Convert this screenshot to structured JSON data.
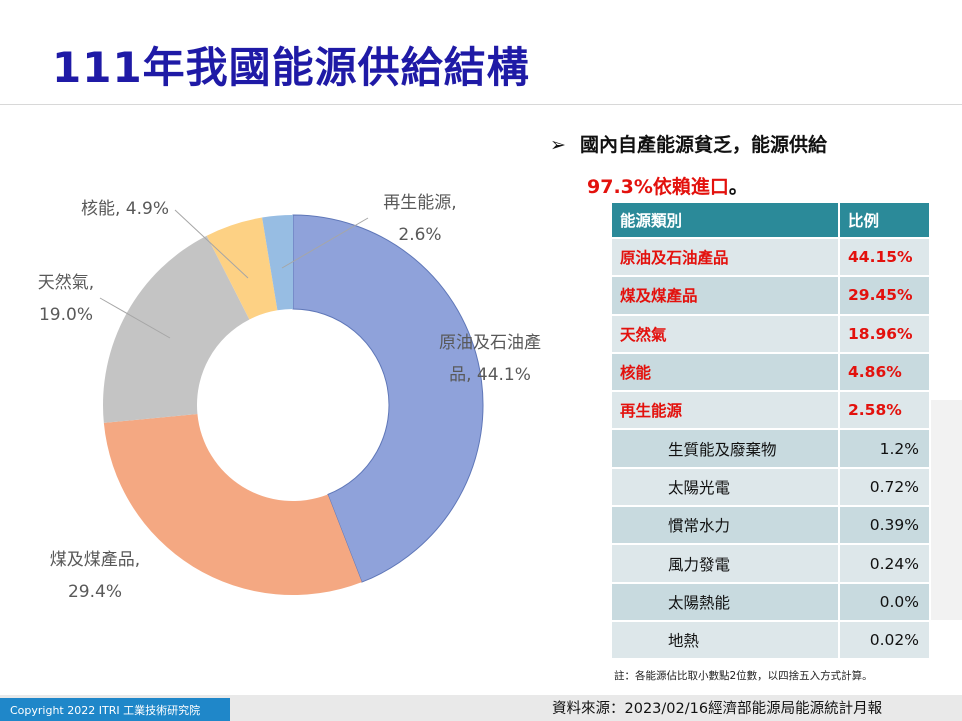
{
  "slide": {
    "title": "111年我國能源供給結構",
    "bullet_line1": "國內自產能源貧乏，能源供給",
    "bullet_line2_red": "97.3%依賴進口",
    "bullet_line2_end": "。",
    "arrow_glyph": "➢",
    "note": "註：各能源佔比取小數點2位數，以四捨五入方式計算。",
    "copyright": "Copyright 2022  ITRI  工業技術研究院",
    "source": "資料來源：2023/02/16經濟部能源局能源統計月報"
  },
  "table": {
    "headers": [
      "能源類別",
      "比例"
    ],
    "main_rows": [
      {
        "name": "原油及石油產品",
        "value": "44.15%"
      },
      {
        "name": "煤及煤產品",
        "value": "29.45%"
      },
      {
        "name": "天然氣",
        "value": "18.96%"
      },
      {
        "name": "核能",
        "value": "4.86%"
      },
      {
        "name": "再生能源",
        "value": "2.58%"
      }
    ],
    "sub_rows": [
      {
        "name": "生質能及廢棄物",
        "value": "1.2%"
      },
      {
        "name": "太陽光電",
        "value": "0.72%"
      },
      {
        "name": "慣常水力",
        "value": "0.39%"
      },
      {
        "name": "風力發電",
        "value": "0.24%"
      },
      {
        "name": "太陽熱能",
        "value": "0.0%"
      },
      {
        "name": "地熱",
        "value": "0.02%"
      }
    ]
  },
  "chart_data": {
    "type": "pie",
    "variant": "donut",
    "title": "",
    "slices": [
      {
        "label": "原油及石油產品",
        "display": [
          "原油及石油產",
          "品, 44.1%"
        ],
        "value": 44.1,
        "color": "#8fa2da"
      },
      {
        "label": "煤及煤產品",
        "display": [
          "煤及煤產品,",
          "29.4%"
        ],
        "value": 29.4,
        "color": "#f4a882"
      },
      {
        "label": "天然氣",
        "display": [
          "天然氣,",
          "19.0%"
        ],
        "value": 19.0,
        "color": "#c4c4c4"
      },
      {
        "label": "核能",
        "display": [
          "核能, 4.9%"
        ],
        "value": 4.9,
        "color": "#fdd184"
      },
      {
        "label": "再生能源",
        "display": [
          "再生能源,",
          "2.6%"
        ],
        "value": 2.6,
        "color": "#97bde3"
      }
    ],
    "legend": "none",
    "label_color": "#595959"
  }
}
